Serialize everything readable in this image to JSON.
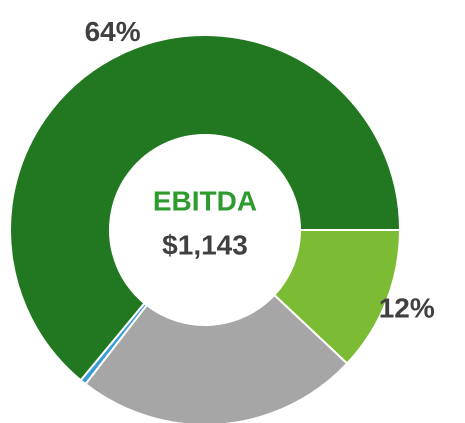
{
  "chart_data": {
    "type": "donut",
    "center_title": "EBITDA",
    "center_value": "$1,143",
    "categories": [
      null,
      null,
      null,
      null
    ],
    "values": [
      12,
      23.5,
      0.5,
      64
    ],
    "value_labels": [
      "12%",
      null,
      null,
      "64%"
    ],
    "colors": [
      "#7cbb34",
      "#a6a6a6",
      "#3a9bd5",
      "#217821"
    ]
  }
}
